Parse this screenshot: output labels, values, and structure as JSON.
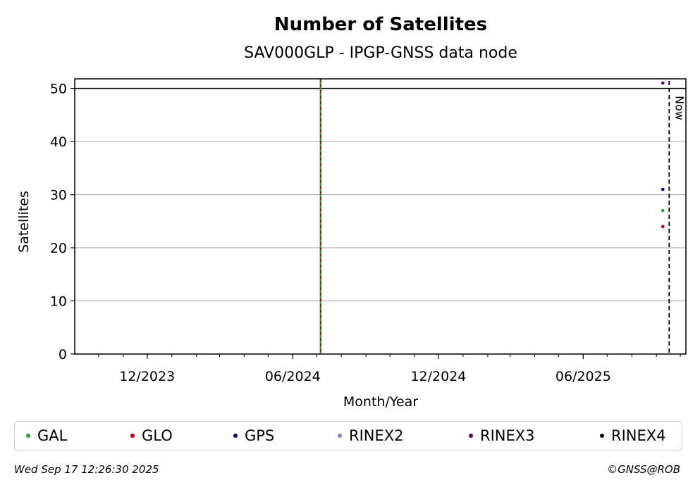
{
  "colors": {
    "GAL": "#2ca02c",
    "GLO": "#c00000",
    "GPS": "#000099",
    "RINEX2": "#8a7fc7",
    "RINEX3": "#660066",
    "RINEX4": "#220011",
    "grid": "#b0b0b0",
    "vline_green": "#2ca02c",
    "vline_red": "#c00000"
  },
  "chart_data": {
    "type": "scatter",
    "title": "Number of Satellites",
    "subtitle": "SAV000GLP - IPGP-GNSS data node",
    "xlabel": "Month/Year",
    "ylabel": "Satellites",
    "xlim": [
      "2023-09-01",
      "2025-10-08"
    ],
    "ylim": [
      0,
      51.8
    ],
    "yticks": [
      0,
      10,
      20,
      30,
      40,
      50
    ],
    "xticks": [
      {
        "date": "2023-12-01",
        "label": "12/2023"
      },
      {
        "date": "2024-06-01",
        "label": "06/2024"
      },
      {
        "date": "2024-12-01",
        "label": "12/2024"
      },
      {
        "date": "2025-06-01",
        "label": "06/2025"
      }
    ],
    "grid": "horizontal",
    "reference_hline": 50,
    "event_vline": "2024-07-06",
    "now": {
      "date": "2025-09-17",
      "label": "Now"
    },
    "series": [
      {
        "name": "GAL",
        "points": [
          {
            "x": "2025-09-09",
            "y": 27
          }
        ]
      },
      {
        "name": "GLO",
        "points": [
          {
            "x": "2025-09-09",
            "y": 24
          }
        ]
      },
      {
        "name": "GPS",
        "points": [
          {
            "x": "2025-09-09",
            "y": 31
          }
        ]
      },
      {
        "name": "RINEX2",
        "points": []
      },
      {
        "name": "RINEX3",
        "points": [
          {
            "x": "2025-09-09",
            "y": 51
          }
        ]
      },
      {
        "name": "RINEX4",
        "points": []
      }
    ],
    "legend_position": "bottom"
  },
  "footer": {
    "timestamp": "Wed Sep 17 12:26:30 2025",
    "credit": "©GNSS@ROB"
  }
}
